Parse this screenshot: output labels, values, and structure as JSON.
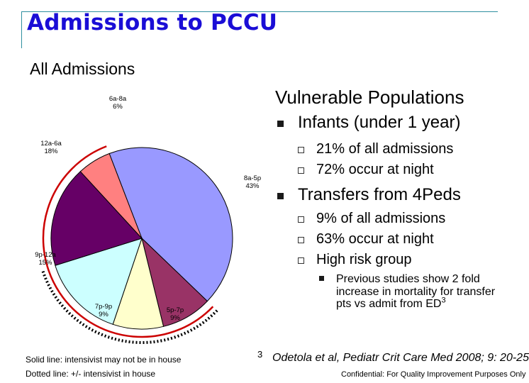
{
  "slide": {
    "title": "Admissions to PCCU",
    "subtitle": "All Admissions",
    "footnote_mark": "3",
    "citation": "Odetola et al, Pediatr Crit Care Med 2008; 9: 20-25",
    "legend_solid": "Solid line: intensivist may not be in house",
    "legend_dotted": "Dotted line: +/- intensivist in house",
    "confidential": "Confidential: For Quality Improvement Purposes Only"
  },
  "bullets": {
    "vulnerable": "Vulnerable Populations",
    "infants": "Infants (under 1 year)",
    "infants_sub1": "21% of all admissions",
    "infants_sub2": "72% occur at night",
    "transfers": "Transfers from 4Peds",
    "transfers_sub1": "9% of all admissions",
    "transfers_sub2": "63% occur at night",
    "transfers_sub3": "High risk group",
    "studies_text": "Previous studies show 2 fold increase in mortality for transfer pts vs admit from ED",
    "studies_sup": "3"
  },
  "chart_data": {
    "type": "pie",
    "title": "",
    "slices": [
      {
        "label": "8a-5p",
        "value": 43,
        "value_label": "43%",
        "color": "#9999ff"
      },
      {
        "label": "5p-7p",
        "value": 9,
        "value_label": "9%",
        "color": "#993366"
      },
      {
        "label": "7p-9p",
        "value": 9,
        "value_label": "9%",
        "color": "#ffffcc"
      },
      {
        "label": "9p-12a",
        "value": 15,
        "value_label": "15%",
        "color": "#ccffff"
      },
      {
        "label": "12a-6a",
        "value": 18,
        "value_label": "18%",
        "color": "#660066"
      },
      {
        "label": "6a-8a",
        "value": 6,
        "value_label": "6%",
        "color": "#ff8080"
      }
    ],
    "annotations": [
      {
        "style": "solid",
        "color": "#cc0000",
        "from_slice": "5p-7p",
        "to_slice": "6a-8a"
      },
      {
        "style": "dotted",
        "color": "#000000",
        "from_slice": "5p-7p",
        "to_slice": "9p-12a"
      }
    ]
  }
}
